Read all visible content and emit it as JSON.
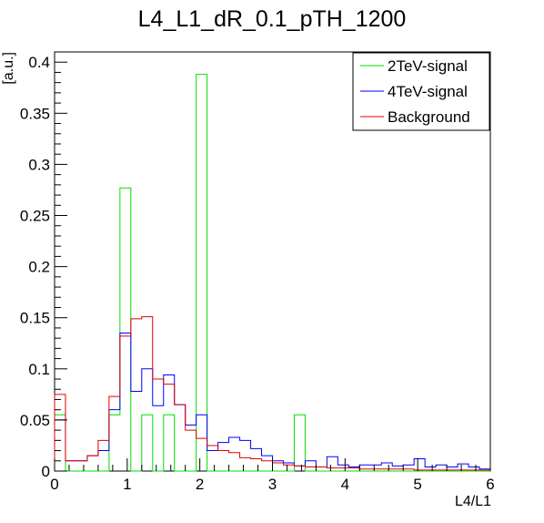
{
  "chart_data": {
    "type": "step-histogram",
    "title": "L4_L1_dR_0.1_pTH_1200",
    "xlabel": "L4/L1",
    "ylabel": "[a.u.]",
    "xlim": [
      0,
      6
    ],
    "ylim": [
      0,
      0.41
    ],
    "grid": false,
    "legend_position": "top-right",
    "x_ticks": [
      0,
      1,
      2,
      3,
      4,
      5,
      6
    ],
    "x_tick_labels": [
      "0",
      "1",
      "2",
      "3",
      "4",
      "5",
      "6"
    ],
    "y_ticks": [
      0,
      0.05,
      0.1,
      0.15,
      0.2,
      0.25,
      0.3,
      0.35,
      0.4
    ],
    "y_tick_labels": [
      "0",
      "0.05",
      "0.1",
      "0.15",
      "0.2",
      "0.25",
      "0.3",
      "0.35",
      "0.4"
    ],
    "bin_edges": [
      0,
      0.15,
      0.3,
      0.45,
      0.6,
      0.75,
      0.9,
      1.05,
      1.2,
      1.35,
      1.5,
      1.65,
      1.8,
      1.95,
      2.1,
      2.25,
      2.4,
      2.55,
      2.7,
      2.85,
      3.0,
      3.15,
      3.3,
      3.45,
      3.6,
      3.75,
      3.9,
      4.05,
      4.2,
      4.35,
      4.5,
      4.65,
      4.8,
      4.95,
      5.1,
      5.25,
      5.4,
      5.55,
      5.7,
      5.85,
      6.0
    ],
    "series": [
      {
        "name": "2TeV-signal",
        "color": "#00e000",
        "values": [
          0.055,
          0,
          0,
          0,
          0,
          0.055,
          0.277,
          0,
          0.055,
          0,
          0.055,
          0,
          0,
          0.388,
          0,
          0,
          0,
          0,
          0,
          0,
          0,
          0,
          0.055,
          0,
          0,
          0,
          0,
          0,
          0,
          0,
          0,
          0,
          0,
          0,
          0,
          0,
          0,
          0,
          0,
          0
        ]
      },
      {
        "name": "4TeV-signal",
        "color": "#0000ff",
        "values": [
          0.05,
          0.01,
          0.01,
          0.015,
          0.02,
          0.06,
          0.135,
          0.078,
          0.1,
          0.064,
          0.094,
          0.065,
          0.045,
          0.055,
          0.02,
          0.028,
          0.033,
          0.03,
          0.022,
          0.015,
          0.01,
          0.008,
          0.005,
          0.01,
          0.004,
          0.014,
          0.006,
          0.004,
          0.006,
          0.006,
          0.008,
          0.005,
          0.006,
          0.012,
          0.004,
          0.006,
          0.004,
          0.007,
          0.004,
          0.002
        ]
      },
      {
        "name": "Background",
        "color": "#e00000",
        "values": [
          0.075,
          0.01,
          0.01,
          0.015,
          0.03,
          0.073,
          0.132,
          0.149,
          0.151,
          0.09,
          0.085,
          0.065,
          0.04,
          0.032,
          0.025,
          0.02,
          0.018,
          0.013,
          0.012,
          0.01,
          0.008,
          0.006,
          0.005,
          0.004,
          0.004,
          0.003,
          0.003,
          0.003,
          0.002,
          0.002,
          0.002,
          0.002,
          0.002,
          0.001,
          0.001,
          0.001,
          0.001,
          0.001,
          0.001,
          0.001
        ]
      }
    ]
  }
}
